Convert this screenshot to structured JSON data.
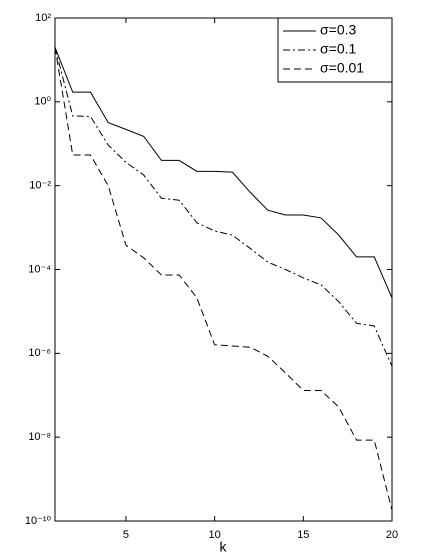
{
  "chart_data": {
    "type": "line",
    "xlabel": "k",
    "log_y": true,
    "x": [
      1,
      2,
      3,
      4,
      5,
      6,
      7,
      8,
      9,
      10,
      11,
      12,
      13,
      14,
      15,
      16,
      17,
      18,
      19,
      20
    ],
    "xlim": [
      1,
      20
    ],
    "xticks": [
      5,
      10,
      15,
      20
    ],
    "ylim": [
      1e-10,
      100
    ],
    "yticks": [
      {
        "value": 1e-10,
        "label": "10⁻¹⁰"
      },
      {
        "value": 1e-08,
        "label": "10⁻⁸"
      },
      {
        "value": 1e-06,
        "label": "10⁻⁶"
      },
      {
        "value": 0.0001,
        "label": "10⁻⁴"
      },
      {
        "value": 0.01,
        "label": "10⁻²"
      },
      {
        "value": 1,
        "label": "10⁰"
      },
      {
        "value": 100,
        "label": "10²"
      }
    ],
    "legend": "upper right",
    "series": [
      {
        "name": "σ=0.3",
        "color": "#000000",
        "dash": "solid",
        "values": [
          20,
          1.7,
          1.7,
          0.32,
          0.22,
          0.15,
          0.04,
          0.04,
          0.022,
          0.022,
          0.021,
          0.007,
          0.0026,
          0.002,
          0.002,
          0.0017,
          0.00066,
          0.0002,
          0.0002,
          2.1e-05
        ]
      },
      {
        "name": "σ=0.1",
        "color": "#000000",
        "dash": "dashdot",
        "values": [
          20,
          0.46,
          0.45,
          0.093,
          0.036,
          0.018,
          0.005,
          0.0045,
          0.0013,
          0.00083,
          0.00066,
          0.00032,
          0.00015,
          0.0001,
          6.3e-05,
          4.3e-05,
          1.7e-05,
          5.2e-06,
          4.5e-06,
          4.9e-07
        ]
      },
      {
        "name": "σ=0.01",
        "color": "#000000",
        "dash": "dashed",
        "values": [
          20,
          0.054,
          0.054,
          0.01,
          0.00038,
          0.00019,
          7.4e-05,
          7.4e-05,
          2.1e-05,
          1.6e-06,
          1.5e-06,
          1.4e-06,
          8.5e-07,
          3.4e-07,
          1.3e-07,
          1.3e-07,
          5.2e-08,
          8.5e-09,
          8.5e-09,
          1.8e-10
        ]
      }
    ]
  }
}
